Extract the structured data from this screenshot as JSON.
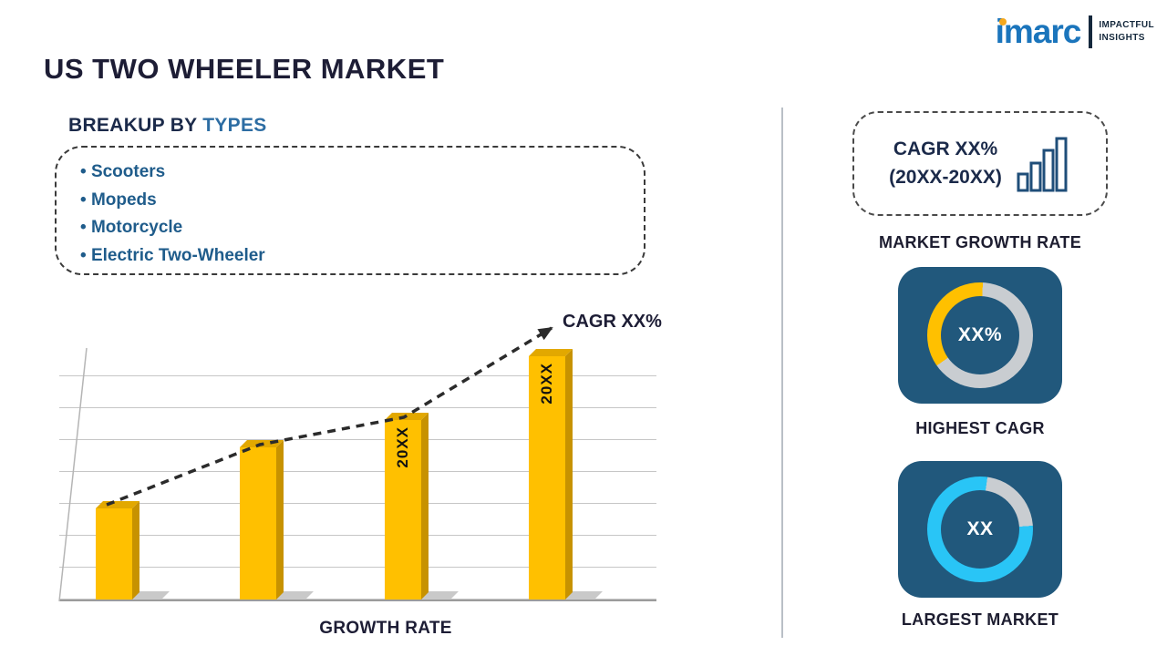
{
  "header": {
    "title": "US TWO WHEELER MARKET"
  },
  "logo": {
    "name": "imarc",
    "tagline_line1": "IMPACTFUL",
    "tagline_line2": "INSIGHTS"
  },
  "breakup": {
    "title_prefix": "BREAKUP BY ",
    "title_accent": "TYPES",
    "items": [
      "Scooters",
      "Mopeds",
      "Motorcycle",
      "Electric Two-Wheeler"
    ]
  },
  "chart_data": {
    "type": "bar",
    "categories": [
      "",
      "",
      "20XX",
      "20XX"
    ],
    "values": [
      36,
      60,
      71,
      96
    ],
    "ylim": [
      0,
      100
    ],
    "xlabel": "GROWTH RATE",
    "annotation": "CAGR XX%",
    "grid": true,
    "trend": "dashed ascending arrow across bar tops",
    "bar_color": "#FFC000"
  },
  "right_panel": {
    "growth_box": {
      "line1": "CAGR XX%",
      "line2": "(20XX-20XX)",
      "label": "MARKET GROWTH RATE"
    },
    "highest_cagr": {
      "value": "XX%",
      "label": "HIGHEST CAGR",
      "accent": "#FFC000"
    },
    "largest_market": {
      "value": "XX",
      "label": "LARGEST MARKET",
      "accent": "#29C5F6"
    }
  },
  "colors": {
    "title_dark": "#1d1d35",
    "accent_blue": "#1f5c8b",
    "dark_navy": "#1b2a4a",
    "bar_yellow": "#FFC000",
    "tile_blue": "#21587C",
    "donut_track": "#C9CDD1",
    "cyan": "#29C5F6",
    "logo_blue": "#1B75BC",
    "logo_yellow": "#F6A81C"
  }
}
